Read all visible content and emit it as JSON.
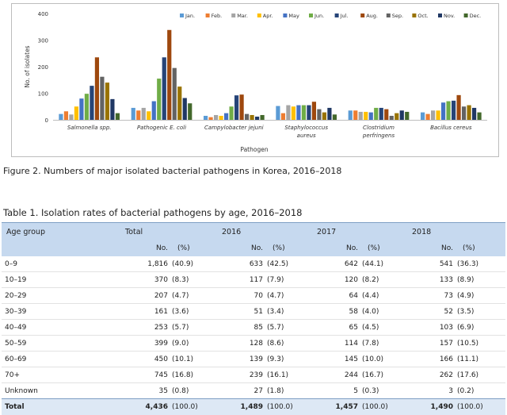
{
  "chart_data": {
    "type": "bar",
    "xlabel": "Pathogen",
    "ylabel": "No. of isolates",
    "ylim": [
      0,
      400
    ],
    "yticks": [
      "0",
      "100",
      "200",
      "300",
      "400"
    ],
    "grid": false,
    "legend_position": "top-right",
    "categories": [
      [
        "Salmonella spp."
      ],
      [
        "Pathogenic E. coli"
      ],
      [
        "Campylobacter jejuni"
      ],
      [
        "Staphylococcus",
        "aureus"
      ],
      [
        "Clostridium",
        "perfringens"
      ],
      [
        "Bacillus cereus"
      ]
    ],
    "series": [
      {
        "name": "Jan.",
        "color": "#5b9bd5",
        "values": [
          22,
          45,
          15,
          52,
          35,
          28
        ]
      },
      {
        "name": "Feb.",
        "color": "#ed7d31",
        "values": [
          32,
          35,
          10,
          25,
          35,
          22
        ]
      },
      {
        "name": "Mar.",
        "color": "#a5a5a5",
        "values": [
          20,
          45,
          18,
          55,
          30,
          35
        ]
      },
      {
        "name": "Apr.",
        "color": "#ffc000",
        "values": [
          50,
          32,
          15,
          50,
          30,
          35
        ]
      },
      {
        "name": "May",
        "color": "#4472c4",
        "values": [
          80,
          70,
          25,
          55,
          28,
          65
        ]
      },
      {
        "name": "Jun.",
        "color": "#70ad47",
        "values": [
          98,
          155,
          50,
          55,
          45,
          70
        ]
      },
      {
        "name": "Jul.",
        "color": "#264478",
        "values": [
          128,
          235,
          92,
          55,
          45,
          72
        ]
      },
      {
        "name": "Aug.",
        "color": "#9e480e",
        "values": [
          235,
          338,
          95,
          68,
          40,
          93
        ]
      },
      {
        "name": "Sep.",
        "color": "#636363",
        "values": [
          162,
          195,
          22,
          40,
          15,
          50
        ]
      },
      {
        "name": "Oct.",
        "color": "#997300",
        "values": [
          140,
          125,
          18,
          28,
          25,
          55
        ]
      },
      {
        "name": "Nov.",
        "color": "#203864",
        "values": [
          78,
          82,
          12,
          45,
          35,
          45
        ]
      },
      {
        "name": "Dec.",
        "color": "#43682b",
        "values": [
          25,
          62,
          18,
          20,
          30,
          28
        ]
      }
    ]
  },
  "figure_caption": "Figure 2. Numbers of major isolated bacterial pathogens in Korea, 2016–2018",
  "table": {
    "caption": "Table 1. Isolation rates of bacterial pathogens by age, 2016–2018",
    "col_age": "Age group",
    "groups": [
      "Total",
      "2016",
      "2017",
      "2018"
    ],
    "sub_no": "No.",
    "sub_pct": "(%)",
    "rows": [
      {
        "age": "0–9",
        "v": [
          "1,816",
          "(40.9)",
          "633",
          "(42.5)",
          "642",
          "(44.1)",
          "541",
          "(36.3)"
        ]
      },
      {
        "age": "10–19",
        "v": [
          "370",
          "(8.3)",
          "117",
          "(7.9)",
          "120",
          "(8.2)",
          "133",
          "(8.9)"
        ]
      },
      {
        "age": "20–29",
        "v": [
          "207",
          "(4.7)",
          "70",
          "(4.7)",
          "64",
          "(4.4)",
          "73",
          "(4.9)"
        ]
      },
      {
        "age": "30–39",
        "v": [
          "161",
          "(3.6)",
          "51",
          "(3.4)",
          "58",
          "(4.0)",
          "52",
          "(3.5)"
        ]
      },
      {
        "age": "40–49",
        "v": [
          "253",
          "(5.7)",
          "85",
          "(5.7)",
          "65",
          "(4.5)",
          "103",
          "(6.9)"
        ]
      },
      {
        "age": "50–59",
        "v": [
          "399",
          "(9.0)",
          "128",
          "(8.6)",
          "114",
          "(7.8)",
          "157",
          "(10.5)"
        ]
      },
      {
        "age": "60–69",
        "v": [
          "450",
          "(10.1)",
          "139",
          "(9.3)",
          "145",
          "(10.0)",
          "166",
          "(11.1)"
        ]
      },
      {
        "age": "70+",
        "v": [
          "745",
          "(16.8)",
          "239",
          "(16.1)",
          "244",
          "(16.7)",
          "262",
          "(17.6)"
        ]
      },
      {
        "age": "Unknown",
        "v": [
          "35",
          "(0.8)",
          "27",
          "(1.8)",
          "5",
          "(0.3)",
          "3",
          "(0.2)"
        ]
      }
    ],
    "total": {
      "age": "Total",
      "v": [
        "4,436",
        "(100.0)",
        "1,489",
        "(100.0)",
        "1,457",
        "(100.0)",
        "1,490",
        "(100.0)"
      ]
    }
  }
}
